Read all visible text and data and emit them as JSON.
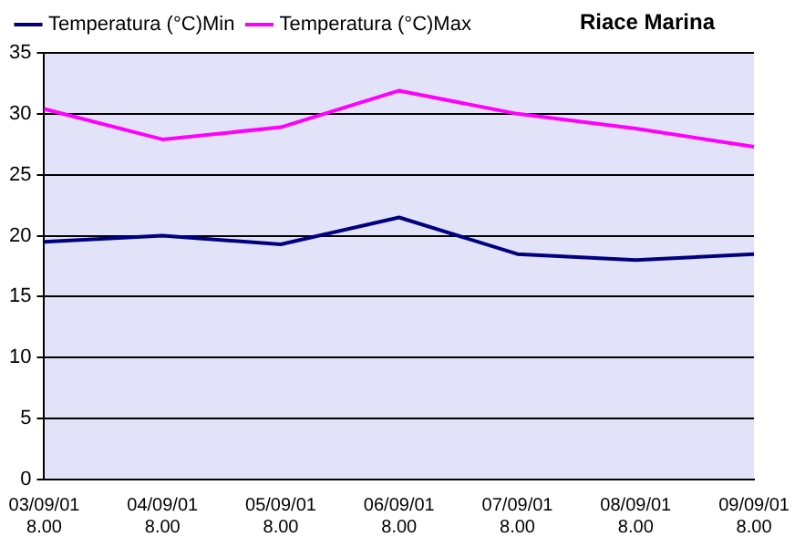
{
  "chart_data": {
    "type": "line",
    "title": "Riace Marina",
    "categories": [
      "03/09/01\n8.00",
      "04/09/01\n8.00",
      "05/09/01\n8.00",
      "06/09/01\n8.00",
      "07/09/01\n8.00",
      "08/09/01\n8.00",
      "09/09/01\n8.00"
    ],
    "series": [
      {
        "name": "Temperatura (°C)Min",
        "color": "#000080",
        "values": [
          19.5,
          20.0,
          19.3,
          21.5,
          18.5,
          18.0,
          18.5
        ]
      },
      {
        "name": "Temperatura (°C)Max",
        "color": "#ff00ff",
        "values": [
          30.4,
          27.9,
          28.9,
          31.9,
          30.0,
          28.8,
          27.3
        ]
      }
    ],
    "ylim": [
      0,
      35
    ],
    "yticks": [
      0,
      5,
      10,
      15,
      20,
      25,
      30,
      35
    ],
    "grid": "y",
    "legend": "top left",
    "marker": "none"
  }
}
